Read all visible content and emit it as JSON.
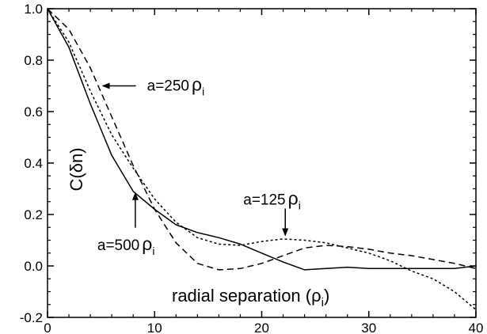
{
  "chart_data": {
    "type": "line",
    "title": "",
    "xlabel": "radial separation (ρ",
    "xlabel_sub": "i",
    "xlabel_close": ")",
    "ylabel": "C(δn)",
    "xlim": [
      0,
      40
    ],
    "ylim": [
      -0.2,
      1.0
    ],
    "xticks": [
      0,
      10,
      20,
      30,
      40
    ],
    "yticks": [
      -0.2,
      0.0,
      0.2,
      0.4,
      0.6,
      0.8,
      1.0
    ],
    "xtick_labels": [
      "0",
      "10",
      "20",
      "30",
      "40"
    ],
    "ytick_labels": [
      "-0.2",
      "0.0",
      "0.2",
      "0.4",
      "0.6",
      "0.8",
      "1.0"
    ],
    "grid": false,
    "series": [
      {
        "style": "solid",
        "x": [
          0,
          2,
          4,
          6,
          8,
          10,
          12,
          14,
          16,
          18,
          20,
          22,
          24,
          26,
          28,
          30,
          32,
          34,
          36,
          38,
          40
        ],
        "y": [
          1.0,
          0.85,
          0.63,
          0.43,
          0.29,
          0.22,
          0.16,
          0.13,
          0.11,
          0.085,
          0.05,
          0.015,
          -0.015,
          -0.01,
          -0.005,
          -0.01,
          -0.01,
          -0.01,
          -0.01,
          -0.01,
          0.0
        ]
      },
      {
        "style": "dashed",
        "x": [
          0,
          2,
          4,
          6,
          8,
          10,
          12,
          14,
          16,
          18,
          20,
          22,
          24,
          26,
          28,
          30,
          32,
          34,
          36,
          38,
          40
        ],
        "y": [
          1.0,
          0.92,
          0.77,
          0.58,
          0.39,
          0.22,
          0.09,
          0.01,
          -0.015,
          -0.01,
          0.01,
          0.04,
          0.07,
          0.08,
          0.075,
          0.065,
          0.05,
          0.04,
          0.025,
          0.01,
          -0.01
        ]
      },
      {
        "style": "dotted",
        "x": [
          0,
          2,
          4,
          6,
          8,
          10,
          12,
          14,
          16,
          18,
          20,
          22,
          24,
          26,
          28,
          30,
          32,
          34,
          36,
          38,
          40
        ],
        "y": [
          1.0,
          0.87,
          0.68,
          0.51,
          0.38,
          0.26,
          0.17,
          0.11,
          0.085,
          0.08,
          0.095,
          0.105,
          0.1,
          0.09,
          0.07,
          0.05,
          0.02,
          -0.02,
          -0.05,
          -0.1,
          -0.17
        ]
      }
    ],
    "annotations": [
      {
        "text": "a=250",
        "sub": "i",
        "arrow": "left",
        "at_x": 5.0,
        "at_y": 0.7
      },
      {
        "text": "a=125",
        "sub": "i",
        "arrow": "down",
        "at_x": 22.2,
        "at_y": 0.1
      },
      {
        "text": "a=500",
        "sub": "i",
        "arrow": "up",
        "at_x": 8.2,
        "at_y": 0.29
      }
    ]
  },
  "colors": {
    "line": "#000000",
    "background": "#ffffff"
  }
}
